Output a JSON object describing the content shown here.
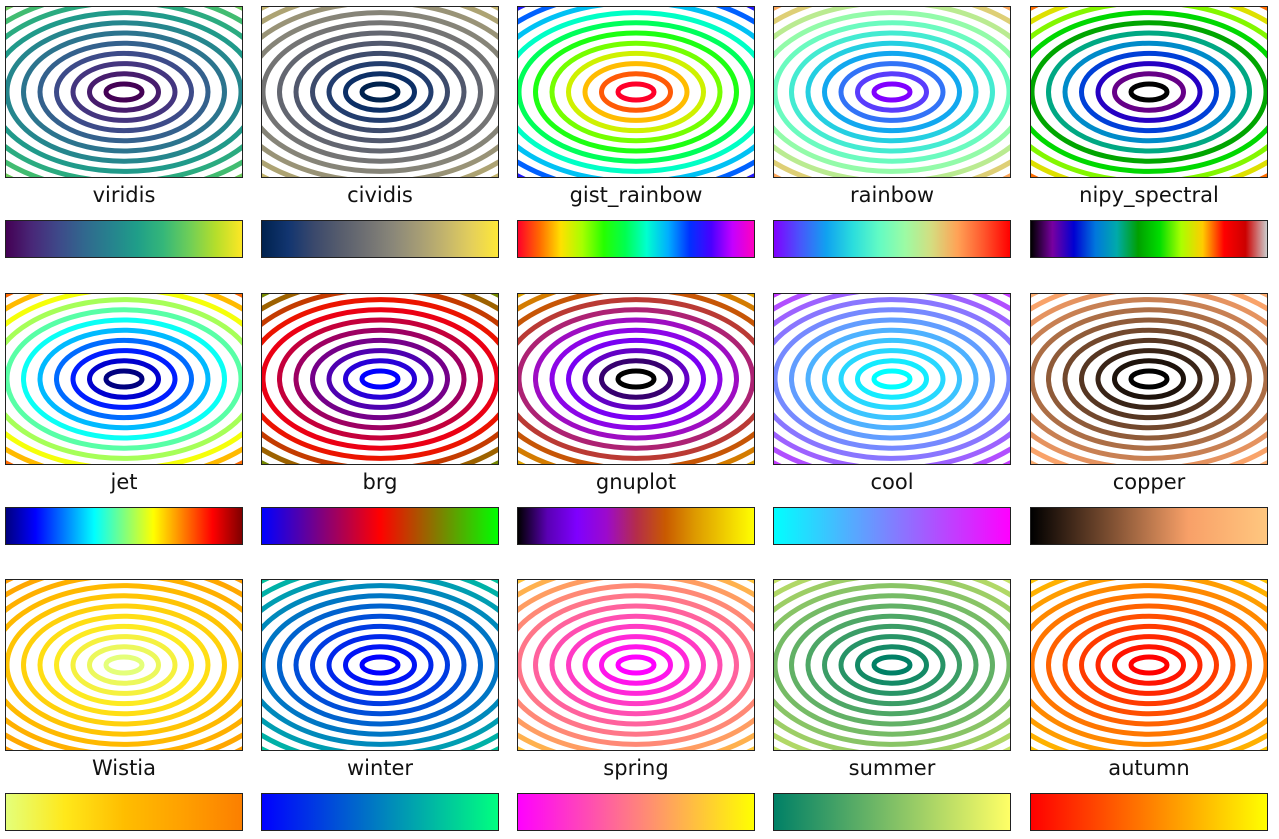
{
  "chart_data": {
    "type": "contour",
    "description_function": "concentric elliptical contour lines",
    "contour_levels": 14,
    "colormaps": [
      {
        "name": "viridis",
        "stops": [
          "#440154",
          "#482878",
          "#3e4989",
          "#31688e",
          "#26828e",
          "#1f9e89",
          "#35b779",
          "#6ece58",
          "#b5de2b",
          "#fde725"
        ]
      },
      {
        "name": "cividis",
        "stops": [
          "#00224e",
          "#123570",
          "#3b496c",
          "#575d6d",
          "#707173",
          "#8a8779",
          "#a69d75",
          "#c4b56c",
          "#e4cf5b",
          "#fee838"
        ]
      },
      {
        "name": "gist_rainbow",
        "stops": [
          "#ff0029",
          "#ff6a00",
          "#ffe100",
          "#a6ff00",
          "#26ff00",
          "#00ff50",
          "#00ffcf",
          "#00aeff",
          "#0031ff",
          "#4800ff",
          "#c400ff",
          "#ff00bf"
        ]
      },
      {
        "name": "rainbow",
        "stops": [
          "#8000ff",
          "#4856fb",
          "#10a2f0",
          "#2adddd",
          "#62fbc4",
          "#9cfba4",
          "#d4dd80",
          "#ffa256",
          "#ff562c",
          "#ff0000"
        ]
      },
      {
        "name": "nipy_spectral",
        "stops": [
          "#000000",
          "#7800a0",
          "#0000d2",
          "#0077dd",
          "#00aaaa",
          "#00a000",
          "#00dd00",
          "#aaff00",
          "#ffcc00",
          "#ff0000",
          "#cc0000",
          "#cccccc"
        ]
      },
      {
        "name": "jet",
        "stops": [
          "#00007f",
          "#0000ff",
          "#007fff",
          "#00ffff",
          "#7fff7f",
          "#ffff00",
          "#ff7f00",
          "#ff0000",
          "#7f0000"
        ]
      },
      {
        "name": "brg",
        "stops": [
          "#0000ff",
          "#7f007f",
          "#ff0000",
          "#7f7f00",
          "#00ff00"
        ]
      },
      {
        "name": "gnuplot",
        "stops": [
          "#000000",
          "#5a00b4",
          "#7f00ff",
          "#9c0acc",
          "#b42c4b",
          "#c95a00",
          "#dd9900",
          "#efcc00",
          "#ffff00"
        ]
      },
      {
        "name": "cool",
        "stops": [
          "#00ffff",
          "#ff00ff"
        ]
      },
      {
        "name": "copper",
        "stops": [
          "#000000",
          "#7c4e31",
          "#f8a068",
          "#ffc77f"
        ]
      },
      {
        "name": "Wistia",
        "stops": [
          "#e4ff7a",
          "#ffe81a",
          "#ffbd00",
          "#ffa000",
          "#fc7f00"
        ]
      },
      {
        "name": "winter",
        "stops": [
          "#0000ff",
          "#00ff80"
        ]
      },
      {
        "name": "spring",
        "stops": [
          "#ff00ff",
          "#ffff00"
        ]
      },
      {
        "name": "summer",
        "stops": [
          "#008066",
          "#ffff66"
        ]
      },
      {
        "name": "autumn",
        "stops": [
          "#ff0000",
          "#ffff00"
        ]
      }
    ]
  }
}
